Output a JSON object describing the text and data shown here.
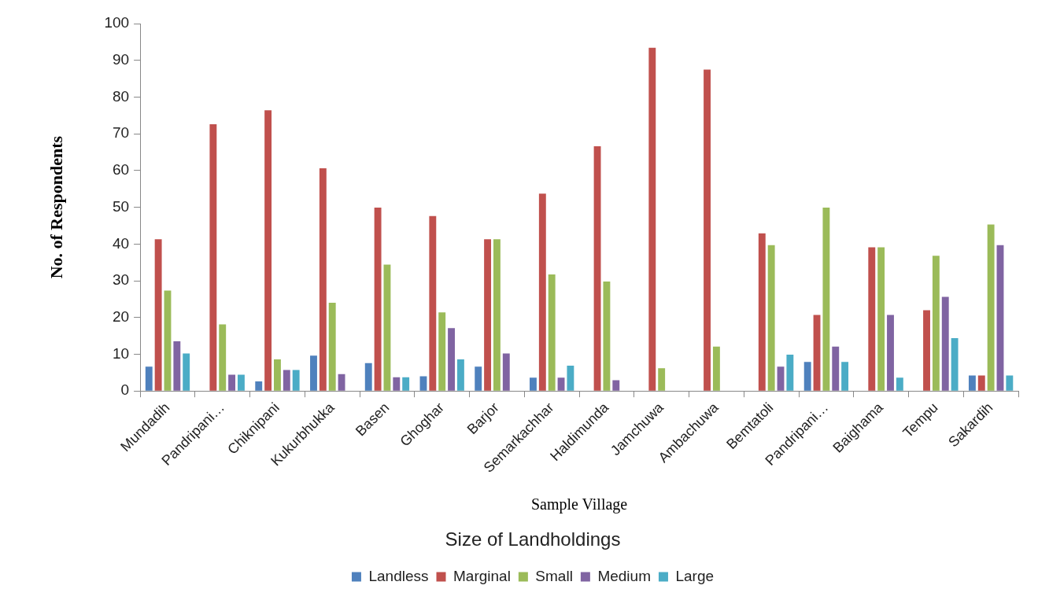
{
  "chart_data": {
    "type": "bar",
    "xlabel": "Sample Village",
    "ylabel": "No. of Respondents",
    "legend_title": "Size of Landholdings",
    "legend": "bottom",
    "categories": [
      "Mundadih",
      "Pandripani…",
      "Chiknipani",
      "Kukurbhukka",
      "Basen",
      "Ghoghar",
      "Barjor",
      "Semarkachhar",
      "Haldimunda",
      "Jamchuwa",
      "Ambachuwa",
      "Bemtatoli",
      "Pandripani…",
      "Baighama",
      "Tempu",
      "Sakardih"
    ],
    "ylim": [
      0,
      100
    ],
    "yticks": [
      0,
      10,
      20,
      30,
      40,
      50,
      60,
      70,
      80,
      90,
      100
    ],
    "series": [
      {
        "name": "Landless",
        "color": "#4f81bd",
        "values": [
          6.6,
          0,
          2.6,
          9.6,
          7.6,
          4.0,
          6.6,
          3.6,
          0,
          0,
          0,
          0,
          7.9,
          0,
          0,
          4.2
        ]
      },
      {
        "name": "Marginal",
        "color": "#c0504d",
        "values": [
          41.3,
          72.6,
          76.4,
          60.6,
          49.9,
          47.6,
          41.3,
          53.7,
          66.6,
          93.4,
          87.5,
          42.9,
          20.7,
          39.1,
          22.0,
          4.2
        ]
      },
      {
        "name": "Small",
        "color": "#9bbb59",
        "values": [
          27.3,
          18.1,
          8.6,
          24.0,
          34.4,
          21.4,
          41.3,
          31.7,
          29.8,
          6.2,
          12.1,
          39.7,
          49.9,
          39.1,
          36.8,
          45.3
        ]
      },
      {
        "name": "Medium",
        "color": "#8064a2",
        "values": [
          13.5,
          4.4,
          5.7,
          4.6,
          3.7,
          17.1,
          10.2,
          3.6,
          2.9,
          0,
          0,
          6.6,
          12.1,
          20.7,
          25.6,
          39.7
        ]
      },
      {
        "name": "Large",
        "color": "#4bacc6",
        "values": [
          10.2,
          4.4,
          5.7,
          0,
          3.7,
          8.6,
          0,
          6.9,
          0,
          0,
          0,
          9.9,
          7.9,
          3.6,
          14.4,
          4.2
        ]
      }
    ]
  }
}
